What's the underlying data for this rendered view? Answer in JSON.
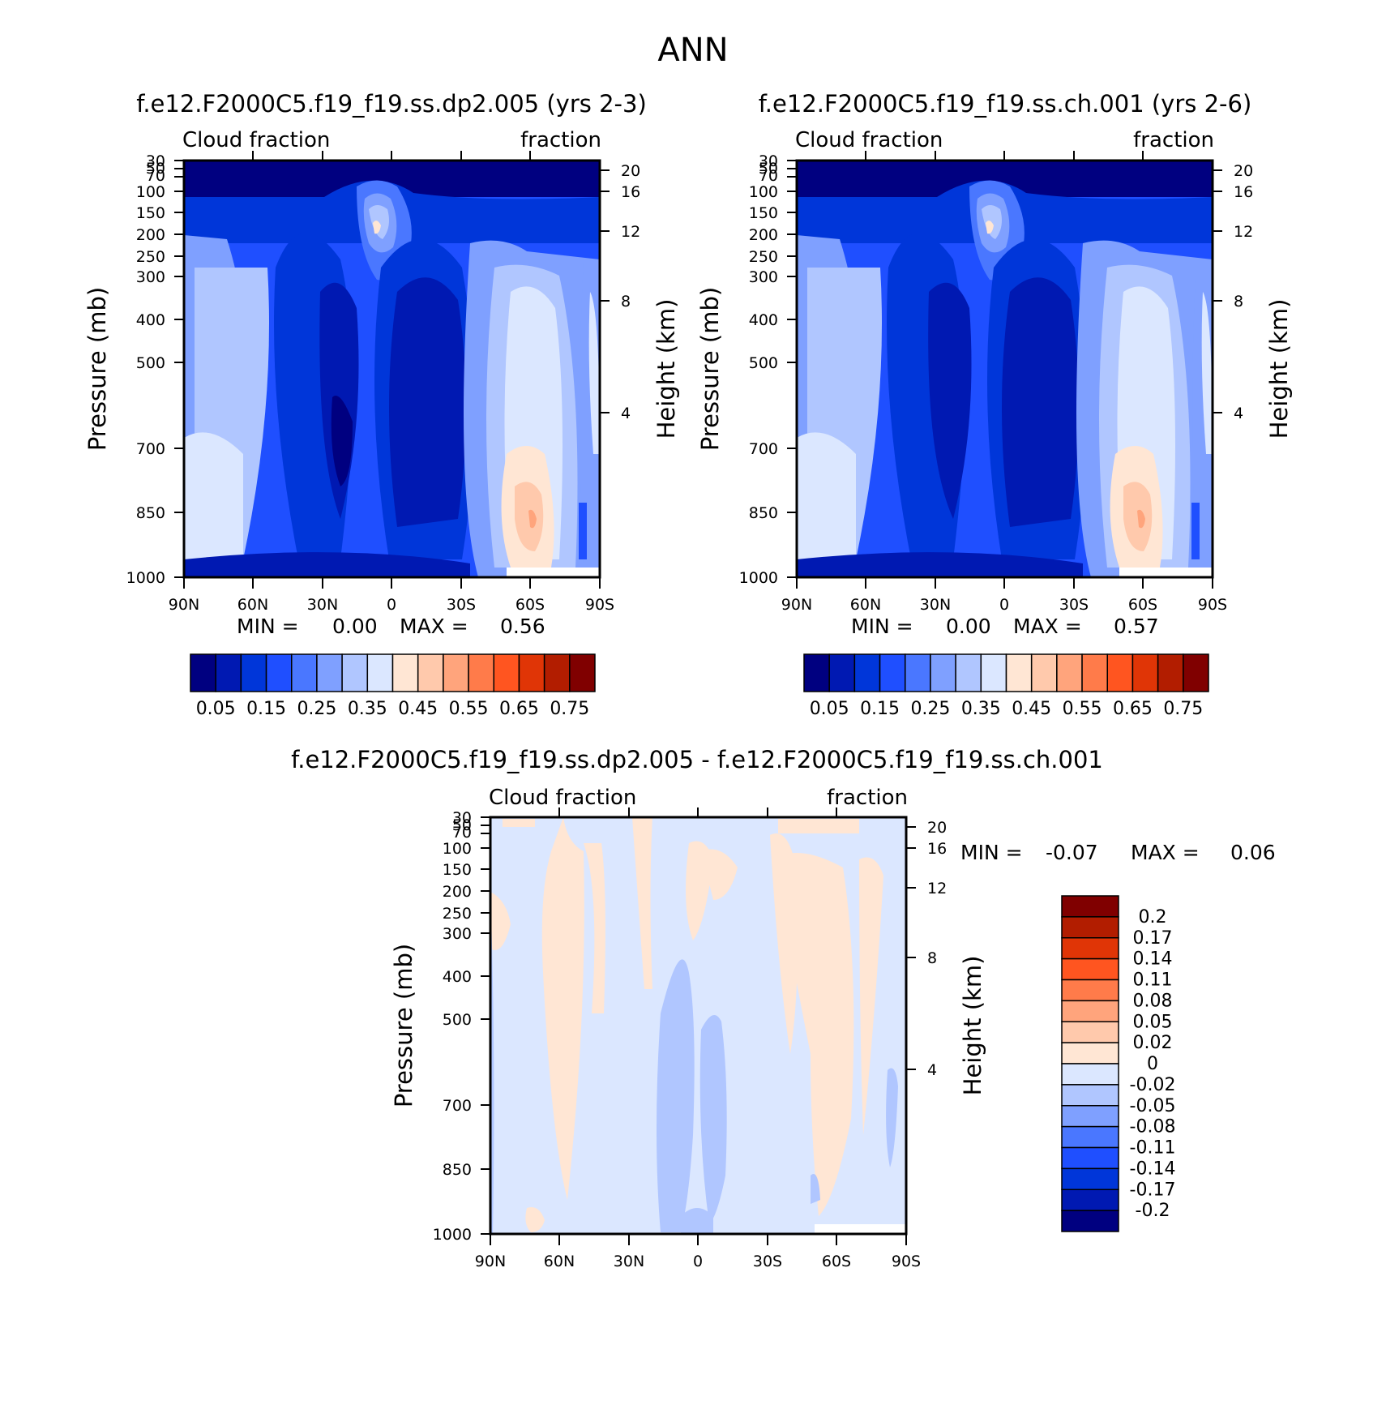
{
  "chart_data": {
    "figure_title": "ANN",
    "panels": [
      {
        "id": "p1",
        "type": "contour",
        "title": "f.e12.F2000C5.f19_f19.ss.dp2.005 (yrs 2-3)",
        "left_label": "Cloud fraction",
        "right_label": "fraction",
        "xlabel": "",
        "ylabel": "Pressure (mb)",
        "ylabel_right": "Height (km)",
        "x_ticks": [
          "90N",
          "60N",
          "30N",
          "0",
          "30S",
          "60S",
          "90S"
        ],
        "y_ticks": [
          30,
          50,
          70,
          100,
          150,
          200,
          250,
          300,
          400,
          500,
          700,
          850,
          1000
        ],
        "y_tick_labels": [
          "30",
          "50",
          "70",
          "100",
          "150",
          "200",
          "250",
          "300",
          "400",
          "500",
          "700",
          "850",
          "1000"
        ],
        "height_ticks": [
          20,
          16,
          12,
          8,
          4
        ],
        "height_tick_labels": [
          "20",
          "16",
          "12",
          "8",
          "4"
        ],
        "min_label": "MIN =",
        "min_value": "0.00",
        "max_label": "MAX =",
        "max_value": "0.56",
        "colorbar": {
          "orientation": "horizontal",
          "colors": [
            "#000080",
            "#0019b2",
            "#0036d9",
            "#1f4fff",
            "#4a77ff",
            "#7fa0ff",
            "#b0c6ff",
            "#dbe7ff",
            "#ffe6d4",
            "#ffc9ac",
            "#ffa47c",
            "#ff7b4a",
            "#ff5520",
            "#e03506",
            "#b21d00",
            "#800000"
          ],
          "labels": [
            "0.05",
            "0.15",
            "0.25",
            "0.35",
            "0.45",
            "0.55",
            "0.65",
            "0.75"
          ]
        }
      },
      {
        "id": "p2",
        "type": "contour",
        "title": "f.e12.F2000C5.f19_f19.ss.ch.001 (yrs 2-6)",
        "left_label": "Cloud fraction",
        "right_label": "fraction",
        "xlabel": "",
        "ylabel": "Pressure (mb)",
        "ylabel_right": "Height (km)",
        "x_ticks": [
          "90N",
          "60N",
          "30N",
          "0",
          "30S",
          "60S",
          "90S"
        ],
        "y_ticks": [
          30,
          50,
          70,
          100,
          150,
          200,
          250,
          300,
          400,
          500,
          700,
          850,
          1000
        ],
        "y_tick_labels": [
          "30",
          "50",
          "70",
          "100",
          "150",
          "200",
          "250",
          "300",
          "400",
          "500",
          "700",
          "850",
          "1000"
        ],
        "height_ticks": [
          20,
          16,
          12,
          8,
          4
        ],
        "height_tick_labels": [
          "20",
          "16",
          "12",
          "8",
          "4"
        ],
        "min_label": "MIN =",
        "min_value": "0.00",
        "max_label": "MAX =",
        "max_value": "0.57",
        "colorbar": {
          "orientation": "horizontal",
          "colors": [
            "#000080",
            "#0019b2",
            "#0036d9",
            "#1f4fff",
            "#4a77ff",
            "#7fa0ff",
            "#b0c6ff",
            "#dbe7ff",
            "#ffe6d4",
            "#ffc9ac",
            "#ffa47c",
            "#ff7b4a",
            "#ff5520",
            "#e03506",
            "#b21d00",
            "#800000"
          ],
          "labels": [
            "0.05",
            "0.15",
            "0.25",
            "0.35",
            "0.45",
            "0.55",
            "0.65",
            "0.75"
          ]
        }
      },
      {
        "id": "p3",
        "type": "contour",
        "title": "f.e12.F2000C5.f19_f19.ss.dp2.005 - f.e12.F2000C5.f19_f19.ss.ch.001",
        "left_label": "Cloud fraction",
        "right_label": "fraction",
        "xlabel": "",
        "ylabel": "Pressure (mb)",
        "ylabel_right": "Height (km)",
        "x_ticks": [
          "90N",
          "60N",
          "30N",
          "0",
          "30S",
          "60S",
          "90S"
        ],
        "y_ticks": [
          30,
          50,
          70,
          100,
          150,
          200,
          250,
          300,
          400,
          500,
          700,
          850,
          1000
        ],
        "y_tick_labels": [
          "30",
          "50",
          "70",
          "100",
          "150",
          "200",
          "250",
          "300",
          "400",
          "500",
          "700",
          "850",
          "1000"
        ],
        "height_ticks": [
          20,
          16,
          12,
          8,
          4
        ],
        "height_tick_labels": [
          "20",
          "16",
          "12",
          "8",
          "4"
        ],
        "min_label": "MIN =",
        "min_value": "-0.07",
        "max_label": "MAX =",
        "max_value": "0.06",
        "colorbar": {
          "orientation": "vertical",
          "colors": [
            "#800000",
            "#b21d00",
            "#e03506",
            "#ff5520",
            "#ff7b4a",
            "#ffa47c",
            "#ffc9ac",
            "#ffe6d4",
            "#dbe7ff",
            "#b0c6ff",
            "#7fa0ff",
            "#4a77ff",
            "#1f4fff",
            "#0036d9",
            "#0019b2",
            "#000080"
          ],
          "labels": [
            "0.2",
            "0.17",
            "0.14",
            "0.11",
            "0.08",
            "0.05",
            "0.02",
            "0",
            "-0.02",
            "-0.05",
            "-0.08",
            "-0.11",
            "-0.14",
            "-0.17",
            "-0.2"
          ]
        }
      }
    ]
  }
}
